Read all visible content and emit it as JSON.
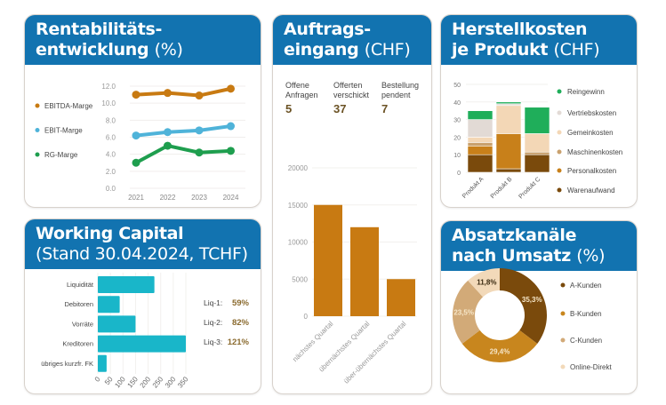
{
  "colors": {
    "header": "#1273b0"
  },
  "cards": {
    "rent": {
      "title1": "Rentabilitäts-",
      "title2": "entwicklung",
      "unit": "(%)"
    },
    "auftrag": {
      "title1": "Auftrags-",
      "title2": "eingang",
      "unit": "(CHF)",
      "stats": [
        {
          "label1": "Offene",
          "label2": "Anfragen",
          "value": "5"
        },
        {
          "label1": "Offerten",
          "label2": "verschickt",
          "value": "37"
        },
        {
          "label1": "Bestellung",
          "label2": "pendent",
          "value": "7"
        }
      ]
    },
    "herst": {
      "title1": "Herstellkosten",
      "title2": "je Produkt",
      "unit": "(CHF)"
    },
    "wc": {
      "title1": "Working Capital",
      "title2": "(Stand 30.04.2024, TCHF)",
      "liq": [
        {
          "label": "Liq-1:",
          "value": "59%"
        },
        {
          "label": "Liq-2:",
          "value": "82%"
        },
        {
          "label": "Liq-3:",
          "value": "121%"
        }
      ]
    },
    "absatz": {
      "title1": "Absatzkanäle",
      "title2": "nach Umsatz",
      "unit": "(%)"
    }
  },
  "chart_data": [
    {
      "type": "line",
      "x": [
        "2021",
        "2022",
        "2023",
        "2024"
      ],
      "ylim": [
        0,
        12
      ],
      "yticks": [
        "0.0",
        "2.0",
        "4.0",
        "6.0",
        "8.0",
        "10.0",
        "12.0"
      ],
      "series": [
        {
          "name": "EBITDA-Marge",
          "color": "#c87a12",
          "values": [
            11.0,
            11.2,
            10.9,
            11.7
          ]
        },
        {
          "name": "EBIT-Marge",
          "color": "#4fb3d9",
          "values": [
            6.2,
            6.6,
            6.8,
            7.3
          ]
        },
        {
          "name": "RG-Marge",
          "color": "#1e9e4e",
          "values": [
            3.0,
            5.0,
            4.2,
            4.4
          ]
        }
      ]
    },
    {
      "type": "bar",
      "categories": [
        "nächstes Quartal",
        "übernächstes Quartal",
        "über-übernächstes Quartal"
      ],
      "values": [
        15000,
        12000,
        5000
      ],
      "ylim": [
        0,
        20000
      ],
      "yticks": [
        "0",
        "5000",
        "10000",
        "15000",
        "20000"
      ],
      "color": "#c87a12"
    },
    {
      "type": "bar",
      "stacked": true,
      "categories": [
        "Produkt A",
        "Produkt B",
        "Produkt C"
      ],
      "ylim": [
        0,
        50
      ],
      "yticks": [
        "0",
        "10",
        "20",
        "30",
        "40",
        "50"
      ],
      "series": [
        {
          "name": "Warenaufwand",
          "color": "#7a4a0c",
          "values": [
            10,
            2,
            10
          ]
        },
        {
          "name": "Personalkosten",
          "color": "#c8801a",
          "values": [
            5,
            20,
            0
          ]
        },
        {
          "name": "Maschinenkosten",
          "color": "#c9a16e",
          "values": [
            2,
            0,
            1.5
          ]
        },
        {
          "name": "Gemeinkosten",
          "color": "#f3d7b6",
          "values": [
            3,
            16,
            10.5
          ]
        },
        {
          "name": "Vertriebskosten",
          "color": "#e2dad5",
          "values": [
            10,
            1,
            0
          ]
        },
        {
          "name": "Reingewinn",
          "color": "#1fae5a",
          "values": [
            5,
            1,
            15
          ]
        }
      ]
    },
    {
      "type": "bar",
      "orientation": "horizontal",
      "categories": [
        "Liquidität",
        "Debitoren",
        "Vorräte",
        "Kreditoren",
        "übriges kurzfr. FK"
      ],
      "values": [
        225,
        87,
        150,
        350,
        35
      ],
      "xlim": [
        0,
        350
      ],
      "xticks": [
        "0",
        "50",
        "100",
        "150",
        "200",
        "250",
        "300",
        "350"
      ],
      "color": "#19b6c9"
    },
    {
      "type": "pie",
      "donut": true,
      "labels": [
        "A-Kunden",
        "B-Kunden",
        "C-Kunden",
        "Online-Direkt"
      ],
      "values": [
        35.3,
        29.4,
        23.5,
        11.8
      ],
      "value_labels": [
        "35,3%",
        "29,4%",
        "23,5%",
        "11,8%"
      ],
      "colors": [
        "#7a4a0c",
        "#c8861e",
        "#d2aa78",
        "#f2d9b9"
      ]
    }
  ]
}
